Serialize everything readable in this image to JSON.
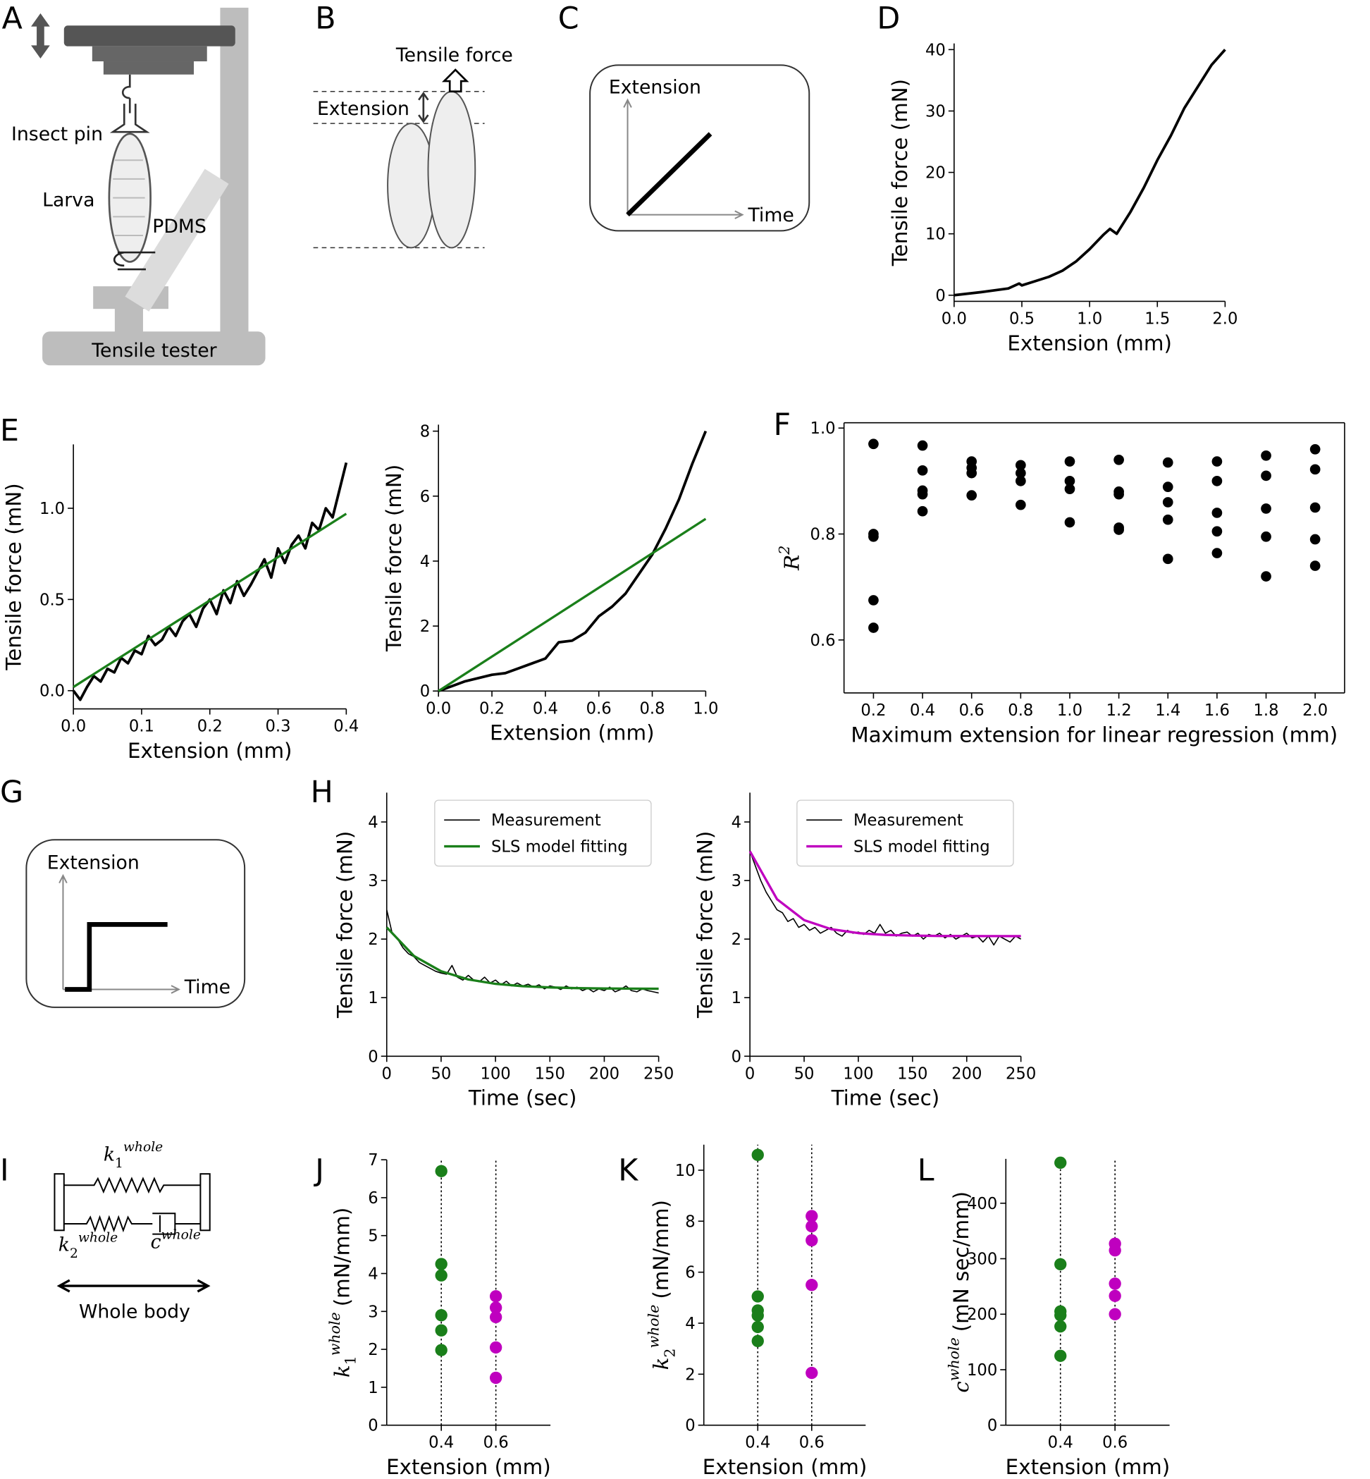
{
  "panels": [
    "A",
    "B",
    "C",
    "D",
    "E",
    "F",
    "G",
    "H",
    "I",
    "J",
    "K",
    "L"
  ],
  "diagrams": {
    "setup": {
      "insect_pin": "Insect pin",
      "larva": "Larva",
      "pdms": "PDMS",
      "tester": "Tensile tester"
    },
    "stretch": {
      "force": "Tensile force",
      "extension": "Extension"
    },
    "ramp": {
      "y": "Extension",
      "x": "Time"
    },
    "step": {
      "y": "Extension",
      "x": "Time"
    },
    "model": {
      "k1": {
        "symbol": "k",
        "sub": "1",
        "sup": "whole"
      },
      "k2": {
        "symbol": "k",
        "sub": "2",
        "sup": "whole"
      },
      "c": {
        "symbol": "c",
        "sup": "whole"
      },
      "caption": "Whole body"
    }
  },
  "chart_data": [
    {
      "type": "line",
      "xlabel": "Extension (mm)",
      "ylabel": "Tensile force (mN)",
      "xlim": [
        0,
        2
      ],
      "ylim": [
        -1,
        41
      ],
      "xticks": [
        {
          "value": 0,
          "label": "0.0"
        },
        0.5,
        {
          "value": 1,
          "label": "1.0"
        },
        1.5,
        {
          "value": 2,
          "label": "2.0"
        }
      ],
      "yticks": [
        0,
        10,
        20,
        30,
        40
      ],
      "spines": [
        "left",
        "bottom"
      ],
      "series": [
        {
          "color": "#000000",
          "x": [
            0,
            0.2,
            0.4,
            0.48,
            0.5,
            0.6,
            0.7,
            0.8,
            0.9,
            1.0,
            1.1,
            1.15,
            1.2,
            1.3,
            1.4,
            1.5,
            1.6,
            1.7,
            1.8,
            1.9,
            2.0
          ],
          "values": [
            0,
            0.5,
            1.1,
            1.9,
            1.6,
            2.3,
            3.0,
            4.0,
            5.5,
            7.5,
            9.8,
            10.8,
            10.0,
            13.5,
            17.5,
            22,
            26,
            30.5,
            34,
            37.5,
            40
          ]
        }
      ]
    },
    {
      "type": "line",
      "xlabel": "Extension (mm)",
      "ylabel": "Tensile force (mN)",
      "xlim": [
        0,
        0.4
      ],
      "ylim": [
        -0.1,
        1.35
      ],
      "xticks": [
        {
          "value": 0,
          "label": "0.0"
        },
        0.1,
        0.2,
        0.3,
        0.4
      ],
      "yticks": [
        {
          "value": 0,
          "label": "0.0"
        },
        0.5,
        {
          "value": 1,
          "label": "1.0"
        }
      ],
      "spines": [
        "left",
        "bottom"
      ],
      "series": [
        {
          "color": "#000000",
          "x": [
            0,
            0.01,
            0.02,
            0.03,
            0.04,
            0.05,
            0.06,
            0.07,
            0.08,
            0.09,
            0.1,
            0.11,
            0.12,
            0.13,
            0.14,
            0.15,
            0.16,
            0.17,
            0.18,
            0.19,
            0.2,
            0.21,
            0.22,
            0.23,
            0.24,
            0.25,
            0.26,
            0.27,
            0.28,
            0.29,
            0.3,
            0.31,
            0.32,
            0.33,
            0.34,
            0.35,
            0.36,
            0.37,
            0.38,
            0.39,
            0.4
          ],
          "values": [
            0.0,
            -0.05,
            0.02,
            0.08,
            0.05,
            0.12,
            0.1,
            0.18,
            0.15,
            0.22,
            0.2,
            0.3,
            0.25,
            0.28,
            0.35,
            0.3,
            0.38,
            0.42,
            0.35,
            0.45,
            0.5,
            0.42,
            0.55,
            0.48,
            0.6,
            0.52,
            0.58,
            0.65,
            0.72,
            0.62,
            0.78,
            0.7,
            0.8,
            0.85,
            0.78,
            0.92,
            0.88,
            1.0,
            0.95,
            1.1,
            1.25
          ]
        },
        {
          "color": "#1a7f1a",
          "x": [
            0,
            0.4
          ],
          "values": [
            0.02,
            0.97
          ]
        }
      ]
    },
    {
      "type": "line",
      "xlabel": "Extension (mm)",
      "ylabel": "Tensile force (mN)",
      "xlim": [
        0,
        1
      ],
      "ylim": [
        0,
        8.2
      ],
      "xticks": [
        {
          "value": 0,
          "label": "0.0"
        },
        0.2,
        0.4,
        0.6,
        0.8,
        {
          "value": 1,
          "label": "1.0"
        }
      ],
      "yticks": [
        0,
        2,
        4,
        6,
        8
      ],
      "spines": [
        "left",
        "bottom"
      ],
      "series": [
        {
          "color": "#000000",
          "x": [
            0,
            0.05,
            0.1,
            0.15,
            0.2,
            0.25,
            0.3,
            0.35,
            0.4,
            0.45,
            0.5,
            0.55,
            0.6,
            0.65,
            0.7,
            0.75,
            0.8,
            0.85,
            0.9,
            0.95,
            1.0
          ],
          "values": [
            0,
            0.15,
            0.3,
            0.4,
            0.5,
            0.55,
            0.7,
            0.85,
            1.0,
            1.5,
            1.55,
            1.8,
            2.3,
            2.6,
            3.0,
            3.6,
            4.2,
            5.0,
            5.9,
            7.0,
            8.0
          ]
        },
        {
          "color": "#1a7f1a",
          "x": [
            0,
            1
          ],
          "values": [
            0,
            5.3
          ]
        }
      ]
    },
    {
      "type": "scatter",
      "xlabel": "Maximum extension for linear regression (mm)",
      "ylabel": {
        "symbol": "R",
        "sup": "2"
      },
      "xlim": [
        0.08,
        2.12
      ],
      "ylim": [
        0.5,
        1.01
      ],
      "xticks": [
        0.2,
        0.4,
        0.6,
        0.8,
        {
          "value": 1,
          "label": "1.0"
        },
        1.2,
        1.4,
        1.6,
        1.8,
        {
          "value": 2,
          "label": "2.0"
        }
      ],
      "yticks": [
        0.6,
        0.8,
        {
          "value": 1,
          "label": "1.0"
        }
      ],
      "spines": [
        "left",
        "bottom",
        "top",
        "right"
      ],
      "series": [
        {
          "color": "#000000",
          "x": [
            0.2,
            0.2,
            0.2,
            0.2,
            0.2,
            0.4,
            0.4,
            0.4,
            0.4,
            0.4,
            0.6,
            0.6,
            0.6,
            0.6,
            0.8,
            0.8,
            0.8,
            0.8,
            1.0,
            1.0,
            1.0,
            1.0,
            1.2,
            1.2,
            1.2,
            1.2,
            1.2,
            1.4,
            1.4,
            1.4,
            1.4,
            1.4,
            1.6,
            1.6,
            1.6,
            1.6,
            1.6,
            1.8,
            1.8,
            1.8,
            1.8,
            1.8,
            2.0,
            2.0,
            2.0,
            2.0,
            2.0
          ],
          "values": [
            0.97,
            0.8,
            0.795,
            0.675,
            0.623,
            0.967,
            0.92,
            0.882,
            0.875,
            0.843,
            0.937,
            0.925,
            0.915,
            0.873,
            0.93,
            0.915,
            0.9,
            0.855,
            0.937,
            0.9,
            0.885,
            0.822,
            0.94,
            0.88,
            0.875,
            0.812,
            0.808,
            0.935,
            0.889,
            0.86,
            0.827,
            0.753,
            0.937,
            0.9,
            0.84,
            0.805,
            0.764,
            0.948,
            0.91,
            0.848,
            0.795,
            0.72,
            0.96,
            0.922,
            0.85,
            0.79,
            0.74
          ]
        }
      ]
    },
    {
      "type": "line",
      "xlabel": "Time (sec)",
      "ylabel": "Tensile force (mN)",
      "xlim": [
        0,
        250
      ],
      "ylim": [
        0,
        4.5
      ],
      "xticks": [
        0,
        50,
        100,
        150,
        200,
        250
      ],
      "yticks": [
        0,
        1,
        2,
        3,
        4
      ],
      "spines": [
        "left",
        "bottom"
      ],
      "legend": "upper right",
      "series": [
        {
          "name": "Measurement",
          "color": "#000000",
          "x": [
            0,
            5,
            10,
            15,
            20,
            25,
            30,
            35,
            40,
            45,
            50,
            55,
            60,
            65,
            70,
            75,
            80,
            85,
            90,
            95,
            100,
            105,
            110,
            115,
            120,
            125,
            130,
            135,
            140,
            145,
            150,
            155,
            160,
            165,
            170,
            175,
            180,
            185,
            190,
            195,
            200,
            205,
            210,
            215,
            220,
            225,
            230,
            235,
            240,
            245,
            250
          ],
          "values": [
            2.5,
            2.1,
            2.0,
            1.85,
            1.75,
            1.7,
            1.6,
            1.55,
            1.5,
            1.45,
            1.42,
            1.4,
            1.55,
            1.35,
            1.3,
            1.38,
            1.3,
            1.27,
            1.35,
            1.25,
            1.3,
            1.22,
            1.28,
            1.2,
            1.25,
            1.2,
            1.23,
            1.18,
            1.22,
            1.15,
            1.2,
            1.18,
            1.14,
            1.2,
            1.15,
            1.18,
            1.12,
            1.16,
            1.1,
            1.15,
            1.12,
            1.18,
            1.1,
            1.14,
            1.2,
            1.12,
            1.1,
            1.15,
            1.12,
            1.1,
            1.08
          ]
        },
        {
          "name": "SLS model fitting",
          "color": "#1a7f1a",
          "x": [
            0,
            25,
            50,
            75,
            100,
            125,
            150,
            175,
            200,
            225,
            250
          ],
          "values": [
            2.2,
            1.712,
            1.451,
            1.311,
            1.236,
            1.196,
            1.175,
            1.163,
            1.157,
            1.154,
            1.152
          ]
        }
      ]
    },
    {
      "type": "line",
      "xlabel": "Time (sec)",
      "ylabel": "Tensile force (mN)",
      "xlim": [
        0,
        250
      ],
      "ylim": [
        0,
        4.5
      ],
      "xticks": [
        0,
        50,
        100,
        150,
        200,
        250
      ],
      "yticks": [
        0,
        1,
        2,
        3,
        4
      ],
      "spines": [
        "left",
        "bottom"
      ],
      "legend": "upper right",
      "series": [
        {
          "name": "Measurement",
          "color": "#000000",
          "x": [
            0,
            5,
            10,
            15,
            20,
            25,
            30,
            35,
            40,
            45,
            50,
            55,
            60,
            65,
            70,
            75,
            80,
            85,
            90,
            95,
            100,
            105,
            110,
            115,
            120,
            125,
            130,
            135,
            140,
            145,
            150,
            155,
            160,
            165,
            170,
            175,
            180,
            185,
            190,
            195,
            200,
            205,
            210,
            215,
            220,
            225,
            230,
            235,
            240,
            245,
            250
          ],
          "values": [
            3.5,
            3.25,
            3.0,
            2.8,
            2.65,
            2.5,
            2.45,
            2.3,
            2.35,
            2.2,
            2.25,
            2.15,
            2.2,
            2.1,
            2.15,
            2.2,
            2.1,
            2.05,
            2.15,
            2.1,
            2.12,
            2.08,
            2.15,
            2.1,
            2.25,
            2.1,
            2.15,
            2.05,
            2.1,
            2.12,
            2.05,
            2.1,
            2.0,
            2.08,
            2.05,
            2.1,
            2.02,
            2.08,
            2.0,
            2.05,
            2.1,
            2.02,
            2.05,
            1.95,
            2.05,
            1.9,
            2.05,
            2.0,
            1.95,
            2.05,
            2.0
          ]
        },
        {
          "name": "SLS model fitting",
          "color": "#bf00bf",
          "x": [
            0,
            25,
            50,
            75,
            100,
            125,
            150,
            175,
            200,
            225,
            250
          ],
          "values": [
            3.5,
            2.681,
            2.324,
            2.169,
            2.102,
            2.072,
            2.06,
            2.054,
            2.052,
            2.051,
            2.05
          ]
        }
      ]
    },
    {
      "type": "scatter",
      "xlabel": "Extension (mm)",
      "ylabel": {
        "symbol": "k",
        "sub": "1",
        "sup": "whole",
        "unit": "(mN/mm)"
      },
      "xlim": [
        0.2,
        0.8
      ],
      "ylim": [
        0,
        7
      ],
      "xticks": [
        0.4,
        0.6
      ],
      "yticks": [
        0,
        1,
        2,
        3,
        4,
        5,
        6,
        7
      ],
      "spines": [
        "left",
        "bottom"
      ],
      "grid": "x",
      "grid_style": "dotted",
      "series": [
        {
          "color": "#1a7f1a",
          "x": [
            0.4,
            0.4,
            0.4,
            0.4,
            0.4,
            0.4
          ],
          "values": [
            6.7,
            4.25,
            3.95,
            2.9,
            2.5,
            1.98
          ]
        },
        {
          "color": "#bf00bf",
          "x": [
            0.6,
            0.6,
            0.6,
            0.6,
            0.6
          ],
          "values": [
            3.4,
            3.1,
            2.85,
            2.05,
            1.25
          ]
        }
      ]
    },
    {
      "type": "scatter",
      "xlabel": "Extension (mm)",
      "ylabel": {
        "symbol": "k",
        "sub": "2",
        "sup": "whole",
        "unit": "(mN/mm)"
      },
      "xlim": [
        0.2,
        0.8
      ],
      "ylim": [
        0,
        11
      ],
      "xticks": [
        0.4,
        0.6
      ],
      "yticks": [
        0,
        2,
        4,
        6,
        8,
        10
      ],
      "spines": [
        "left",
        "bottom"
      ],
      "grid": "x",
      "grid_style": "dotted",
      "series": [
        {
          "color": "#1a7f1a",
          "x": [
            0.4,
            0.4,
            0.4,
            0.4,
            0.4,
            0.4
          ],
          "values": [
            10.6,
            5.05,
            4.5,
            4.3,
            3.85,
            3.3
          ]
        },
        {
          "color": "#bf00bf",
          "x": [
            0.6,
            0.6,
            0.6,
            0.6,
            0.6
          ],
          "values": [
            8.2,
            7.8,
            7.25,
            5.5,
            2.05
          ]
        }
      ]
    },
    {
      "type": "scatter",
      "xlabel": "Extension (mm)",
      "ylabel": {
        "symbol": "c",
        "sup": "whole",
        "unit": "(mN sec/mm)"
      },
      "xlim": [
        0.2,
        0.8
      ],
      "ylim": [
        0,
        480
      ],
      "xticks": [
        0.4,
        0.6
      ],
      "yticks": [
        0,
        100,
        200,
        300,
        400
      ],
      "spines": [
        "left",
        "bottom"
      ],
      "grid": "x",
      "grid_style": "dotted",
      "series": [
        {
          "color": "#1a7f1a",
          "x": [
            0.4,
            0.4,
            0.4,
            0.4,
            0.4,
            0.4
          ],
          "values": [
            473,
            290,
            205,
            198,
            178,
            125
          ]
        },
        {
          "color": "#bf00bf",
          "x": [
            0.6,
            0.6,
            0.6,
            0.6,
            0.6
          ],
          "values": [
            327,
            315,
            255,
            233,
            200
          ]
        }
      ]
    }
  ]
}
